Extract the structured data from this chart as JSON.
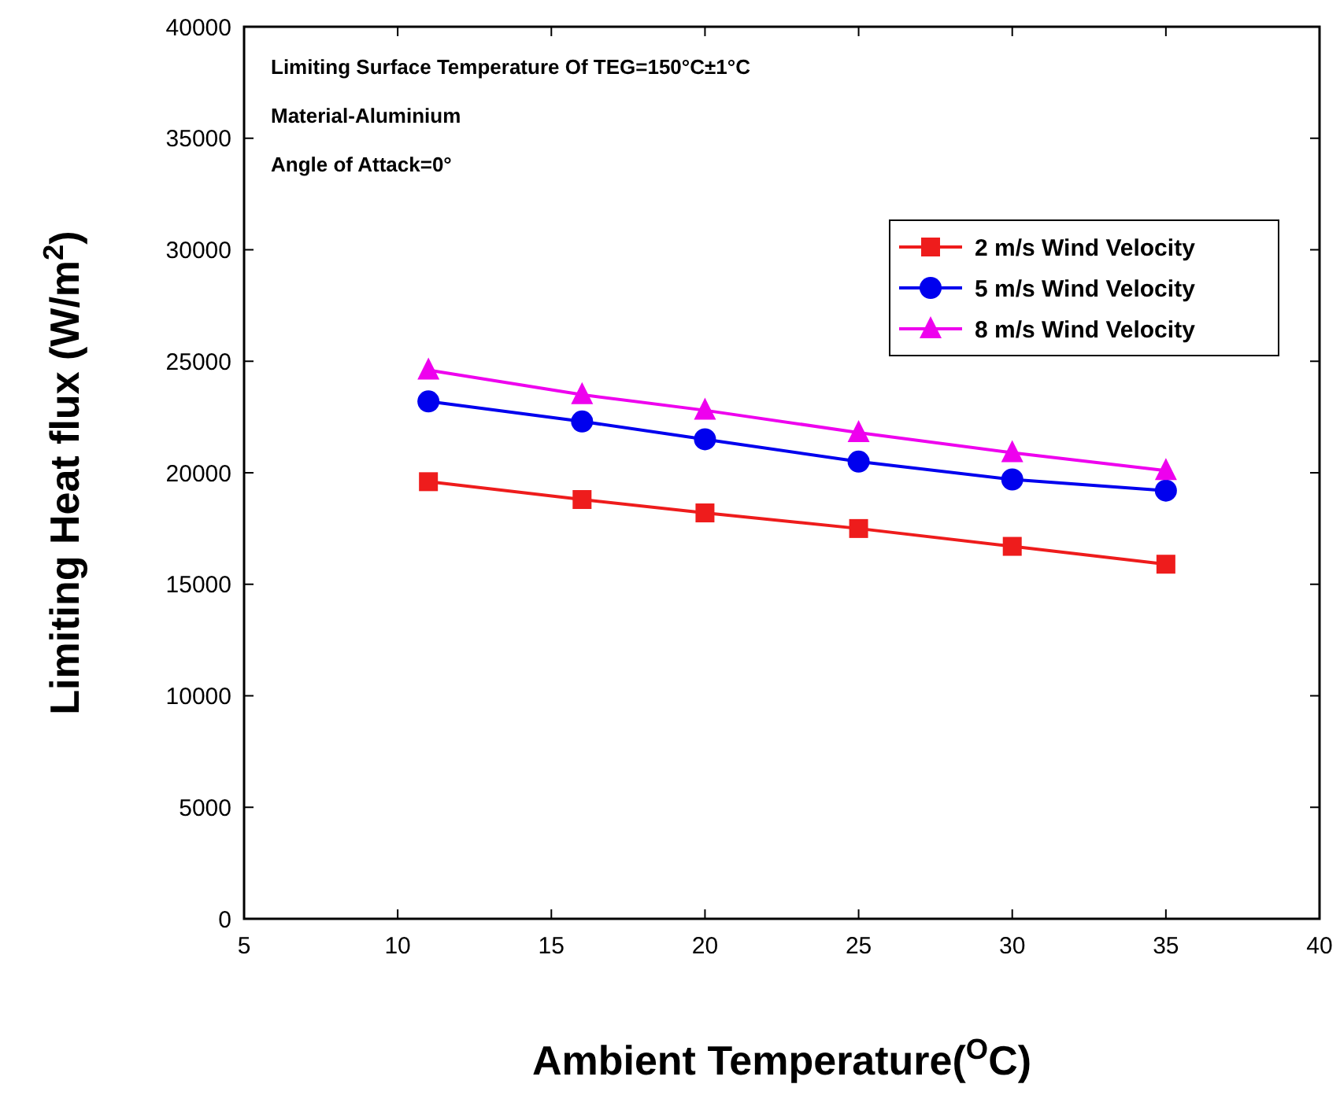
{
  "chart_data": {
    "type": "line",
    "xlabel": "Ambient Temperature($^{O}$C)",
    "ylabel": "Limiting Heat flux (W/m$^{2}$)",
    "annotations": [
      "Limiting Surface Temperature Of TEG=150°C±1°C",
      "Material-Aluminium",
      "Angle of Attack=0°"
    ],
    "x": [
      11,
      16,
      20,
      25,
      30,
      35
    ],
    "series": [
      {
        "name": "2 m/s Wind Velocity",
        "color": "#ee1c1c",
        "marker": "square",
        "values": [
          19600,
          18800,
          18200,
          17500,
          16700,
          15900
        ]
      },
      {
        "name": "5 m/s Wind Velocity",
        "color": "#0000ee",
        "marker": "circle",
        "values": [
          23200,
          22300,
          21500,
          20500,
          19700,
          19200
        ]
      },
      {
        "name": "8 m/s Wind Velocity",
        "color": "#ee00ee",
        "marker": "triangle",
        "values": [
          24600,
          23500,
          22800,
          21800,
          20900,
          20100
        ]
      }
    ],
    "xlim": [
      5,
      40
    ],
    "xticks": [
      5,
      10,
      15,
      20,
      25,
      30,
      35,
      40
    ],
    "ylim": [
      0,
      40000
    ],
    "yticks": [
      0,
      5000,
      10000,
      15000,
      20000,
      25000,
      30000,
      35000,
      40000
    ],
    "legend": "top right",
    "grid": false,
    "line_style": "solid"
  }
}
